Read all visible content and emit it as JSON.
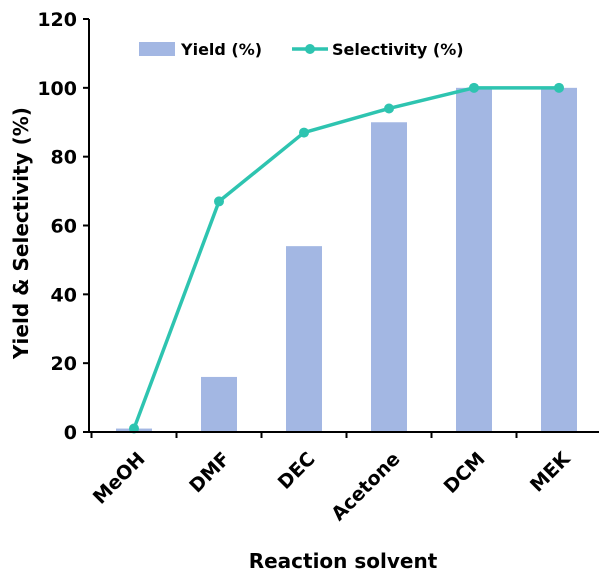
{
  "chart_data": {
    "type": "bar",
    "categories": [
      "MeOH",
      "DMF",
      "DEC",
      "Acetone",
      "DCM",
      "MEK"
    ],
    "series": [
      {
        "name": "Yield (%)",
        "type": "bar",
        "values": [
          1,
          16,
          54,
          90,
          100,
          100
        ],
        "color": "#a3b7e3"
      },
      {
        "name": "Selectivity (%)",
        "type": "line",
        "values": [
          1,
          67,
          87,
          94,
          100,
          100
        ],
        "color": "#2ec4b0"
      }
    ],
    "xlabel": "Reaction solvent",
    "ylabel": "Yield & Selectivity (%)",
    "ylim": [
      0,
      120
    ],
    "yticks": [
      0,
      20,
      40,
      60,
      80,
      100,
      120
    ],
    "grid": false,
    "legend": "top-center"
  }
}
